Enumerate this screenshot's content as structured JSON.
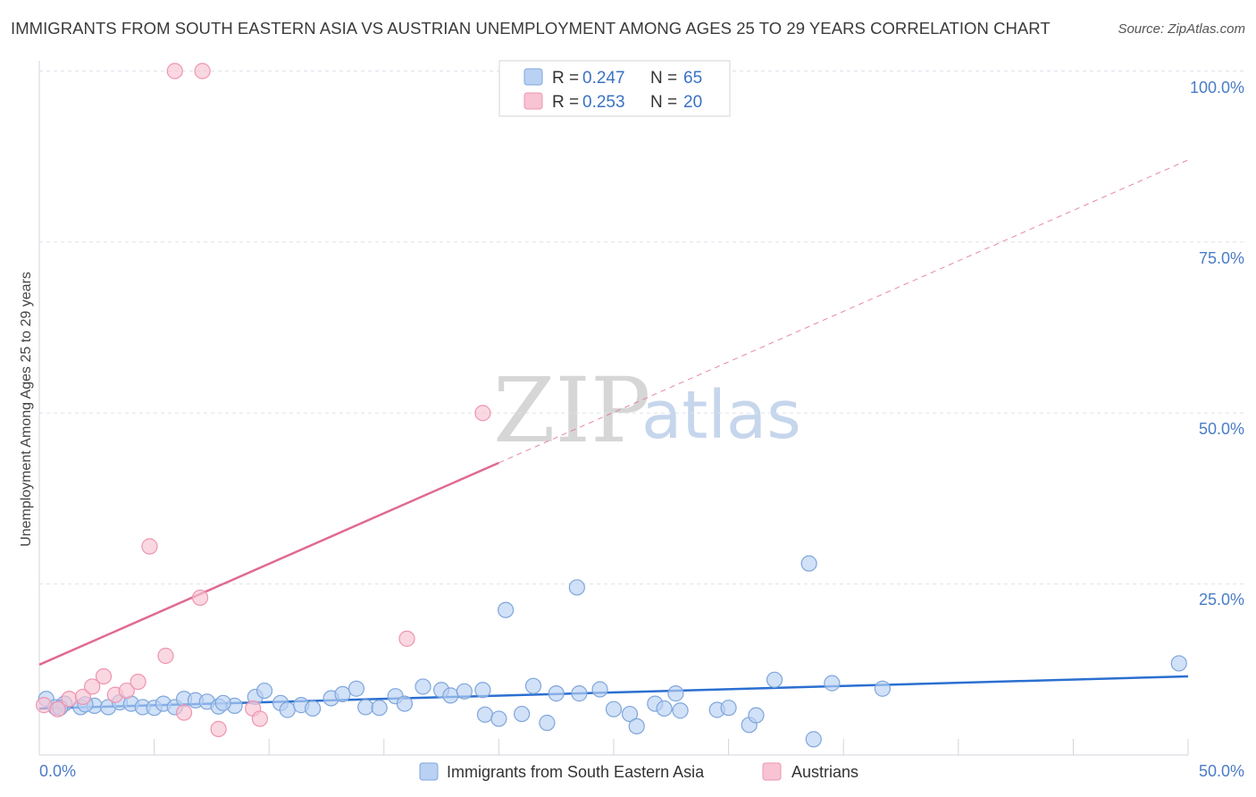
{
  "header": {
    "title": "IMMIGRANTS FROM SOUTH EASTERN ASIA VS AUSTRIAN UNEMPLOYMENT AMONG AGES 25 TO 29 YEARS CORRELATION CHART",
    "source": "Source: ZipAtlas.com"
  },
  "watermark": {
    "zip": "ZIP",
    "atlas": "atlas"
  },
  "colors": {
    "blue_fill": "#b9d1f3",
    "blue_stroke": "#7fa6dc",
    "blue_line": "#2b6fd0",
    "pink_fill": "#f8c3d3",
    "pink_stroke": "#ee94b0",
    "pink_line": "#e06a92",
    "grid": "#dde3ec",
    "tick_text": "#4a7cc7"
  },
  "legend": {
    "rows": [
      {
        "r_label": "R = ",
        "r_value": "0.247",
        "n_label": "N = ",
        "n_value": "65"
      },
      {
        "r_label": "R = ",
        "r_value": "0.253",
        "n_label": "N = ",
        "n_value": "20"
      }
    ]
  },
  "chart_data": {
    "type": "scatter",
    "xlabel": "",
    "ylabel": "Unemployment Among Ages 25 to 29 years",
    "xlim": [
      0,
      50
    ],
    "ylim": [
      0,
      100
    ],
    "x_tick_labels": [
      "0.0%",
      "50.0%"
    ],
    "y_tick_labels": [
      "100.0%",
      "75.0%",
      "50.0%",
      "25.0%"
    ],
    "y_ticks": [
      100,
      75,
      50,
      25
    ],
    "legend_position": "top-center",
    "series": [
      {
        "name": "Immigrants from South Eastern Asia",
        "R": 0.247,
        "N": 65,
        "trend": {
          "x0": 0,
          "y0": 6.8,
          "x1": 50,
          "y1": 11.5,
          "dashed_from": null
        },
        "points": [
          [
            0.3,
            8.2
          ],
          [
            0.7,
            7.0
          ],
          [
            1.1,
            7.5
          ],
          [
            1.8,
            7.0
          ],
          [
            2.4,
            7.2
          ],
          [
            3.0,
            7.0
          ],
          [
            3.5,
            7.7
          ],
          [
            4.0,
            7.5
          ],
          [
            4.5,
            7.0
          ],
          [
            5.0,
            6.9
          ],
          [
            5.4,
            7.5
          ],
          [
            5.9,
            7.0
          ],
          [
            6.3,
            8.2
          ],
          [
            6.8,
            8.0
          ],
          [
            7.3,
            7.8
          ],
          [
            7.8,
            7.1
          ],
          [
            8.5,
            7.2
          ],
          [
            9.4,
            8.5
          ],
          [
            9.8,
            9.4
          ],
          [
            10.5,
            7.6
          ],
          [
            10.8,
            6.6
          ],
          [
            11.4,
            7.3
          ],
          [
            11.9,
            6.8
          ],
          [
            12.7,
            8.3
          ],
          [
            13.2,
            8.9
          ],
          [
            13.8,
            9.7
          ],
          [
            14.2,
            7.0
          ],
          [
            14.8,
            6.9
          ],
          [
            15.5,
            8.6
          ],
          [
            15.9,
            7.5
          ],
          [
            16.7,
            10.0
          ],
          [
            17.5,
            9.5
          ],
          [
            17.9,
            8.7
          ],
          [
            18.5,
            9.3
          ],
          [
            19.3,
            9.5
          ],
          [
            19.4,
            5.9
          ],
          [
            20.0,
            5.3
          ],
          [
            20.3,
            21.2
          ],
          [
            21.0,
            6.0
          ],
          [
            21.5,
            10.1
          ],
          [
            22.1,
            4.7
          ],
          [
            22.5,
            9.0
          ],
          [
            23.4,
            24.5
          ],
          [
            23.5,
            9.0
          ],
          [
            24.4,
            9.6
          ],
          [
            25.0,
            6.7
          ],
          [
            25.7,
            6.0
          ],
          [
            26.0,
            4.2
          ],
          [
            26.8,
            7.5
          ],
          [
            27.2,
            6.8
          ],
          [
            27.7,
            9.0
          ],
          [
            27.9,
            6.5
          ],
          [
            29.5,
            6.6
          ],
          [
            30.0,
            6.9
          ],
          [
            30.9,
            4.4
          ],
          [
            31.2,
            5.8
          ],
          [
            32.0,
            11.0
          ],
          [
            33.5,
            28.0
          ],
          [
            33.7,
            2.3
          ],
          [
            34.5,
            10.5
          ],
          [
            36.7,
            9.7
          ],
          [
            49.6,
            13.4
          ],
          [
            0.9,
            6.9
          ],
          [
            2.0,
            7.4
          ],
          [
            8.0,
            7.6
          ]
        ]
      },
      {
        "name": "Austrians",
        "R": 0.253,
        "N": 20,
        "trend": {
          "x0": 0,
          "y0": 13.2,
          "x1": 50,
          "y1": 87.0,
          "dashed_from": 20.0
        },
        "points": [
          [
            0.2,
            7.3
          ],
          [
            0.8,
            6.7
          ],
          [
            1.3,
            8.2
          ],
          [
            1.9,
            8.5
          ],
          [
            2.3,
            10.0
          ],
          [
            2.8,
            11.5
          ],
          [
            3.3,
            8.8
          ],
          [
            3.8,
            9.4
          ],
          [
            4.3,
            10.7
          ],
          [
            4.8,
            30.5
          ],
          [
            5.5,
            14.5
          ],
          [
            5.9,
            100.0
          ],
          [
            6.3,
            6.2
          ],
          [
            7.0,
            23.0
          ],
          [
            7.1,
            100.0
          ],
          [
            7.8,
            3.8
          ],
          [
            9.3,
            6.8
          ],
          [
            9.6,
            5.3
          ],
          [
            16.0,
            17.0
          ],
          [
            19.3,
            50.0
          ]
        ]
      }
    ]
  },
  "bottom_legend": {
    "items": [
      {
        "label": "Immigrants from South Eastern Asia"
      },
      {
        "label": "Austrians"
      }
    ]
  }
}
